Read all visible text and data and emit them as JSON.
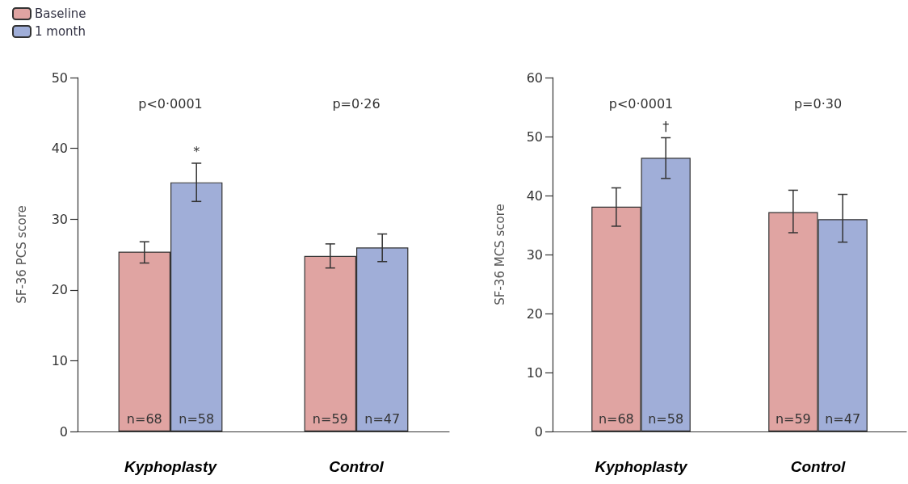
{
  "chart_data": [
    {
      "type": "bar",
      "ylabel": "SF-36 PCS score",
      "categories": [
        "Kyphoplasty",
        "Control"
      ],
      "series": [
        {
          "name": "Baseline",
          "color": "#e0a4a2",
          "values": [
            25.4,
            24.8
          ],
          "errors": [
            [
              23.8,
              26.8
            ],
            [
              23.1,
              26.5
            ]
          ]
        },
        {
          "name": "1 month",
          "color": "#a0aed8",
          "values": [
            35.2,
            26.0
          ],
          "errors": [
            [
              32.5,
              37.9
            ],
            [
              24.0,
              27.9
            ]
          ]
        }
      ],
      "ylim": [
        0,
        50
      ],
      "yticks": [
        0,
        10,
        20,
        30,
        40,
        50
      ],
      "legend": "top left",
      "annotations": [
        "p<0·0001",
        "p=0·26",
        "*",
        "n=68",
        "n=58",
        "n=59",
        "n=47"
      ]
    },
    {
      "type": "bar",
      "ylabel": "SF-36 MCS score",
      "categories": [
        "Kyphoplasty",
        "Control"
      ],
      "series": [
        {
          "color": "#e0a4a2",
          "values": [
            38.1,
            37.2
          ],
          "errors": [
            [
              34.8,
              41.3
            ],
            [
              33.7,
              40.9
            ]
          ]
        },
        {
          "color": "#a0aed8",
          "values": [
            46.4,
            36.0
          ],
          "errors": [
            [
              42.9,
              49.8
            ],
            [
              32.1,
              40.2
            ]
          ]
        }
      ],
      "ylim": [
        0,
        60
      ],
      "yticks": [
        0,
        10,
        20,
        30,
        40,
        50,
        60
      ],
      "annotations": [
        "p<0·0001",
        "p=0·30",
        "†",
        "n=68",
        "n=58",
        "n=59",
        "n=47"
      ]
    }
  ]
}
